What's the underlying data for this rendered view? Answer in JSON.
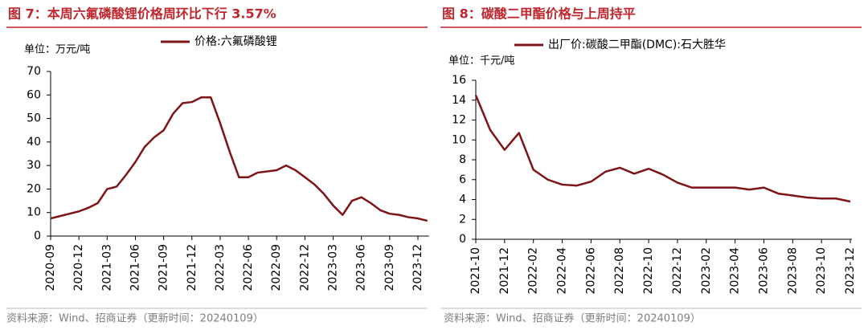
{
  "chart_data": [
    {
      "type": "line",
      "title": "图 7：本周六氟磷酸锂价格周环比下行 3.57%",
      "unit": "单位：万元/吨",
      "source": "资料来源：Wind、招商证券（更新时间：20240109）",
      "x": [
        "2020-09",
        "2020-10",
        "2020-11",
        "2020-12",
        "2021-01",
        "2021-02",
        "2021-03",
        "2021-04",
        "2021-05",
        "2021-06",
        "2021-07",
        "2021-08",
        "2021-09",
        "2021-10",
        "2021-11",
        "2021-12",
        "2022-01",
        "2022-02",
        "2022-03",
        "2022-04",
        "2022-05",
        "2022-06",
        "2022-07",
        "2022-08",
        "2022-09",
        "2022-10",
        "2022-11",
        "2022-12",
        "2023-01",
        "2023-02",
        "2023-03",
        "2023-04",
        "2023-05",
        "2023-06",
        "2023-07",
        "2023-08",
        "2023-09",
        "2023-10",
        "2023-11",
        "2023-12",
        "2024-01"
      ],
      "xticks": [
        "2020-09",
        "2020-12",
        "2021-03",
        "2021-06",
        "2021-09",
        "2021-12",
        "2022-03",
        "2022-06",
        "2022-09",
        "2022-12",
        "2023-03",
        "2023-06",
        "2023-09",
        "2023-12"
      ],
      "series": [
        {
          "name": "价格:六氟磷酸锂",
          "color": "#7f1416",
          "values": [
            7.5,
            8.5,
            9.5,
            10.5,
            12,
            14,
            20,
            21,
            26,
            31.5,
            38,
            42,
            45,
            52,
            56.5,
            57,
            59,
            59,
            48,
            36,
            25,
            25,
            27,
            27.5,
            28,
            30,
            28,
            25,
            22,
            18,
            13,
            9,
            15,
            16.5,
            14,
            11,
            9.5,
            9,
            8,
            7.5,
            6.5
          ]
        }
      ],
      "ylim": [
        0,
        70
      ],
      "yticks": [
        0,
        10,
        20,
        30,
        40,
        50,
        60,
        70
      ]
    },
    {
      "type": "line",
      "title": "图 8：碳酸二甲酯价格与上周持平",
      "unit": "单位：千元/吨",
      "source": "资料来源：Wind、招商证券（更新时间：20240109）",
      "x": [
        "2021-10",
        "2021-11",
        "2021-12",
        "2022-01",
        "2022-02",
        "2022-03",
        "2022-04",
        "2022-05",
        "2022-06",
        "2022-07",
        "2022-08",
        "2022-09",
        "2022-10",
        "2022-11",
        "2022-12",
        "2023-01",
        "2023-02",
        "2023-03",
        "2023-04",
        "2023-05",
        "2023-06",
        "2023-07",
        "2023-08",
        "2023-09",
        "2023-10",
        "2023-11",
        "2023-12"
      ],
      "xticks": [
        "2021-10",
        "2021-12",
        "2022-02",
        "2022-04",
        "2022-06",
        "2022-08",
        "2022-10",
        "2022-12",
        "2023-02",
        "2023-04",
        "2023-06",
        "2023-08",
        "2023-10",
        "2023-12"
      ],
      "series": [
        {
          "name": "出厂价:碳酸二甲酯(DMC):石大胜华",
          "color": "#7f1416",
          "values": [
            14.5,
            11,
            9,
            10.7,
            7,
            6,
            5.5,
            5.4,
            5.8,
            6.8,
            7.2,
            6.6,
            7.1,
            6.5,
            5.7,
            5.2,
            5.2,
            5.2,
            5.2,
            5.0,
            5.2,
            4.6,
            4.4,
            4.2,
            4.1,
            4.1,
            3.8
          ]
        }
      ],
      "ylim": [
        0,
        16
      ],
      "yticks": [
        0,
        2,
        4,
        6,
        8,
        10,
        12,
        14,
        16
      ]
    }
  ]
}
